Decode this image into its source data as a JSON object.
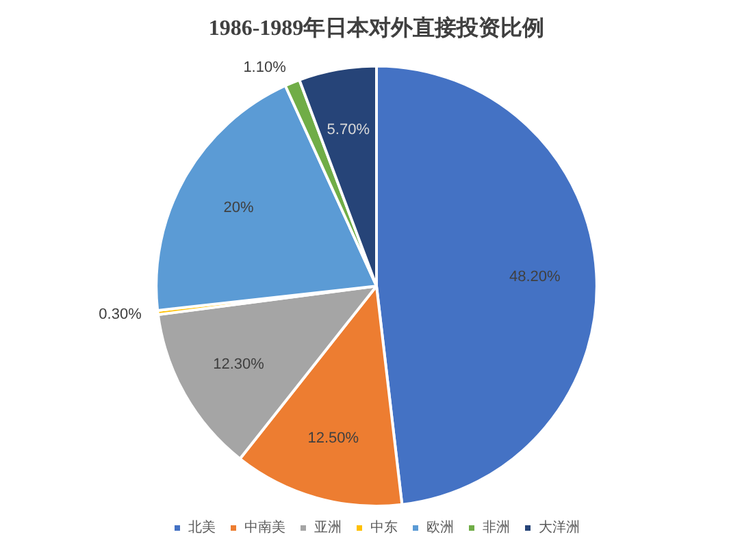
{
  "chart_data": {
    "type": "pie",
    "title": "1986-1989年日本对外直接投资比例",
    "categories": [
      "北美",
      "中南美",
      "亚洲",
      "中东",
      "欧洲",
      "非洲",
      "大洋洲"
    ],
    "values": [
      48.2,
      12.5,
      12.3,
      0.3,
      20,
      1.1,
      5.7
    ],
    "colors": [
      "#4472c4",
      "#ed7d31",
      "#a5a5a5",
      "#ffc000",
      "#5b9bd5",
      "#70ad47",
      "#264478"
    ],
    "value_labels": [
      "48.20%",
      "12.50%",
      "12.30%",
      "0.30%",
      "20%",
      "1.10%",
      "5.70%"
    ],
    "legend": "bottom"
  }
}
